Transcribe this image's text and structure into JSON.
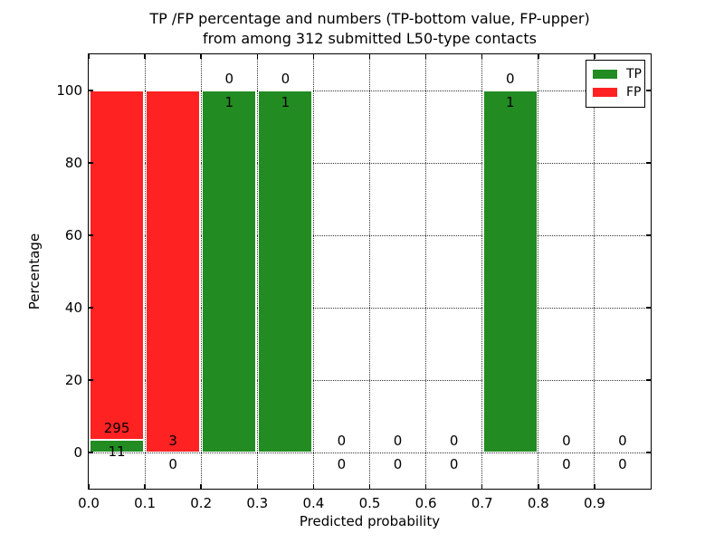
{
  "chart_data": {
    "type": "bar",
    "stacked": true,
    "title_lines": [
      "TP /FP percentage and numbers (TP-bottom value, FP-upper)",
      "from among 312 submitted L50-type contacts"
    ],
    "xlabel": "Predicted probability",
    "ylabel": "Percentage",
    "xlim": [
      0.0,
      1.0
    ],
    "ylim": [
      -10,
      110
    ],
    "xtick_labels": [
      "0.0",
      "0.1",
      "0.2",
      "0.3",
      "0.4",
      "0.5",
      "0.6",
      "0.7",
      "0.8",
      "0.9"
    ],
    "ytick_labels": [
      "0",
      "20",
      "40",
      "60",
      "80",
      "100"
    ],
    "grid": true,
    "grid_style": "dotted",
    "bin_edges": [
      0.0,
      0.1,
      0.2,
      0.3,
      0.4,
      0.5,
      0.6,
      0.7,
      0.8,
      0.9,
      1.0
    ],
    "series": [
      {
        "name": "TP",
        "color": "#228b22",
        "counts": [
          11,
          0,
          1,
          1,
          0,
          0,
          0,
          1,
          0,
          0
        ],
        "pct": [
          3.6,
          0,
          100,
          100,
          0,
          0,
          0,
          100,
          0,
          0
        ]
      },
      {
        "name": "FP",
        "color": "#ff2222",
        "counts": [
          295,
          3,
          0,
          0,
          0,
          0,
          0,
          0,
          0,
          0
        ],
        "pct": [
          96.4,
          100,
          0,
          0,
          0,
          0,
          0,
          0,
          0,
          0
        ]
      }
    ],
    "legend": {
      "position": "upper-right",
      "items": [
        {
          "label": "TP",
          "color": "#228b22"
        },
        {
          "label": "FP",
          "color": "#ff2222"
        }
      ]
    },
    "label_convention": "TP count below bar top, FP count above bar top"
  }
}
